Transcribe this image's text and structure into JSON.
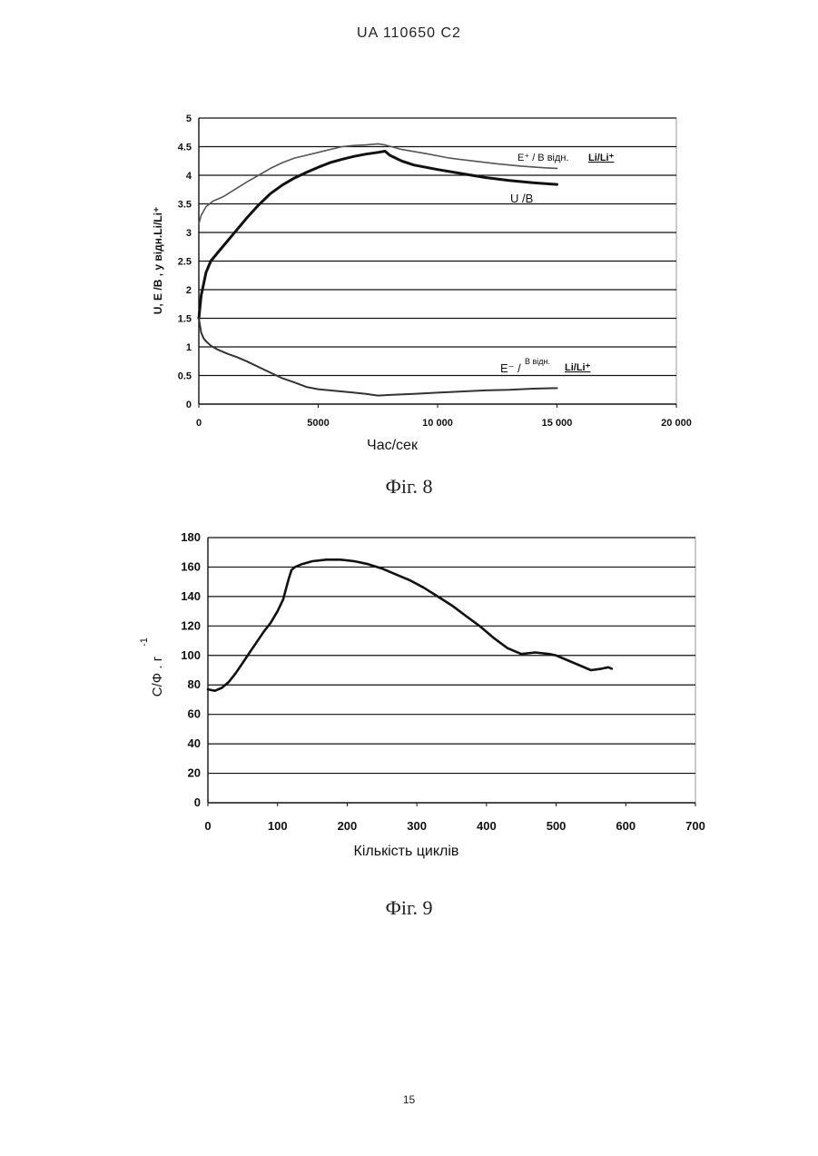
{
  "header": {
    "doc_id": "UA   110650   C2"
  },
  "page_number": "15",
  "chart_data": [
    {
      "type": "line",
      "caption": "Фіг. 8",
      "xlabel": "Час/сек",
      "ylabel": "U, E /В , у відн.Li/Li⁺",
      "xlim": [
        0,
        20000
      ],
      "ylim": [
        0,
        5
      ],
      "x_ticks": [
        0,
        5000,
        10000,
        15000,
        20000
      ],
      "x_tick_labels": [
        "0",
        "5000",
        "10 000",
        "15 000",
        "20 000"
      ],
      "y_ticks": [
        0,
        0.5,
        1,
        1.5,
        2,
        2.5,
        3,
        3.5,
        4,
        4.5,
        5
      ],
      "y_tick_labels": [
        "0",
        "0.5",
        "1",
        "1.5",
        "2",
        "2.5",
        "3",
        "3.5",
        "4",
        "4.5",
        "5"
      ],
      "grid": true,
      "series": [
        {
          "name": "E⁺ / В відн. Li/Li⁺",
          "label_main": "E⁺ / В відн.",
          "label_ref": "Li/Li⁺",
          "x": [
            0,
            100,
            300,
            600,
            1000,
            1500,
            2000,
            2500,
            3000,
            3500,
            4000,
            4500,
            5000,
            5500,
            6000,
            6500,
            7000,
            7500,
            7800,
            8500,
            9500,
            10500,
            11500,
            12500,
            13500,
            14500,
            15000
          ],
          "y": [
            3.15,
            3.3,
            3.45,
            3.55,
            3.62,
            3.75,
            3.88,
            4.0,
            4.12,
            4.22,
            4.3,
            4.35,
            4.4,
            4.45,
            4.5,
            4.52,
            4.53,
            4.55,
            4.53,
            4.45,
            4.38,
            4.3,
            4.25,
            4.2,
            4.16,
            4.13,
            4.12
          ],
          "color": "#555555",
          "stroke_width": 1.6
        },
        {
          "name": "U /В",
          "label_main": "U /В",
          "x": [
            0,
            100,
            200,
            300,
            500,
            800,
            1200,
            1600,
            2000,
            2500,
            3000,
            3500,
            4000,
            4500,
            5000,
            5500,
            6000,
            6500,
            7000,
            7500,
            7800,
            8000,
            8500,
            9000,
            10000,
            11000,
            12000,
            13000,
            14000,
            15000
          ],
          "y": [
            1.5,
            1.9,
            2.1,
            2.3,
            2.5,
            2.65,
            2.85,
            3.05,
            3.25,
            3.48,
            3.68,
            3.83,
            3.95,
            4.05,
            4.14,
            4.22,
            4.28,
            4.33,
            4.37,
            4.4,
            4.42,
            4.35,
            4.25,
            4.18,
            4.1,
            4.03,
            3.96,
            3.91,
            3.87,
            3.84
          ],
          "color": "#111111",
          "stroke_width": 3
        },
        {
          "name": "E⁻ / В відн. Li/Li⁺",
          "label_main": "E⁻ /",
          "label_sup": "В відн.",
          "label_ref": "Li/Li⁺",
          "x": [
            0,
            100,
            200,
            300,
            500,
            800,
            1200,
            1600,
            2000,
            2500,
            3000,
            3500,
            4000,
            4500,
            5000,
            5500,
            6000,
            6500,
            7000,
            7500,
            8000,
            9000,
            10000,
            11000,
            12000,
            13000,
            14000,
            15000
          ],
          "y": [
            1.5,
            1.25,
            1.15,
            1.1,
            1.02,
            0.95,
            0.88,
            0.82,
            0.75,
            0.65,
            0.55,
            0.45,
            0.38,
            0.3,
            0.26,
            0.24,
            0.22,
            0.2,
            0.18,
            0.15,
            0.16,
            0.18,
            0.2,
            0.22,
            0.24,
            0.25,
            0.27,
            0.28
          ],
          "color": "#333333",
          "stroke_width": 2
        }
      ]
    },
    {
      "type": "line",
      "caption": "Фіг. 9",
      "xlabel": "Кількість циклів",
      "ylabel": "C/Ф . г",
      "ylabel_sup": "-1",
      "xlim": [
        0,
        700
      ],
      "ylim": [
        0,
        180
      ],
      "x_ticks": [
        0,
        100,
        200,
        300,
        400,
        500,
        600,
        700
      ],
      "x_tick_labels": [
        "0",
        "100",
        "200",
        "300",
        "400",
        "500",
        "600",
        "700"
      ],
      "y_ticks": [
        0,
        20,
        40,
        60,
        80,
        100,
        120,
        140,
        160,
        180
      ],
      "y_tick_labels": [
        "0",
        "20",
        "40",
        "60",
        "80",
        "100",
        "120",
        "140",
        "160",
        "180"
      ],
      "grid": true,
      "series": [
        {
          "x": [
            0,
            10,
            20,
            30,
            40,
            50,
            60,
            70,
            80,
            90,
            100,
            108,
            112,
            116,
            120,
            125,
            135,
            150,
            170,
            190,
            210,
            230,
            250,
            270,
            290,
            310,
            330,
            350,
            370,
            390,
            410,
            430,
            450,
            470,
            490,
            500,
            510,
            530,
            550,
            565,
            575,
            580
          ],
          "y": [
            77,
            76,
            78,
            82,
            88,
            95,
            102,
            109,
            116,
            122,
            130,
            138,
            145,
            152,
            158,
            160,
            162,
            164,
            165,
            165,
            164,
            162,
            159,
            155,
            151,
            146,
            140,
            134,
            127,
            120,
            112,
            105,
            101,
            102,
            101,
            100,
            98,
            94,
            90,
            91,
            92,
            91
          ],
          "color": "#111111",
          "stroke_width": 2.6
        }
      ]
    }
  ]
}
